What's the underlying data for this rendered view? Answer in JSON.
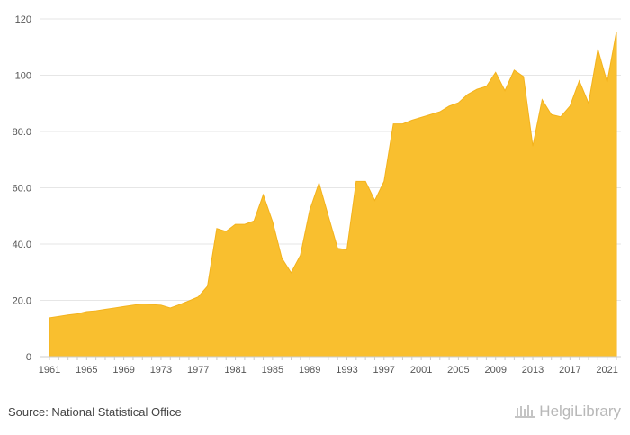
{
  "chart_data": {
    "type": "area",
    "title": "",
    "xlabel": "",
    "ylabel": "",
    "x": [
      1961,
      1962,
      1963,
      1964,
      1965,
      1966,
      1967,
      1968,
      1969,
      1970,
      1971,
      1972,
      1973,
      1974,
      1975,
      1976,
      1977,
      1978,
      1979,
      1980,
      1981,
      1982,
      1983,
      1984,
      1985,
      1986,
      1987,
      1988,
      1989,
      1990,
      1991,
      1992,
      1993,
      1994,
      1995,
      1996,
      1997,
      1998,
      1999,
      2000,
      2001,
      2002,
      2003,
      2004,
      2005,
      2006,
      2007,
      2008,
      2009,
      2010,
      2011,
      2012,
      2013,
      2014,
      2015,
      2016,
      2017,
      2018,
      2019,
      2020,
      2021,
      2022
    ],
    "values": [
      13.8,
      14.3,
      14.8,
      15.2,
      16.0,
      16.3,
      16.8,
      17.3,
      17.8,
      18.3,
      18.7,
      18.5,
      18.3,
      17.3,
      18.5,
      19.8,
      21.2,
      25.0,
      45.5,
      44.5,
      47.0,
      47.0,
      48.2,
      57.5,
      48.0,
      35.0,
      29.8,
      36.0,
      52.0,
      61.7,
      50.0,
      38.5,
      38.0,
      62.3,
      62.3,
      55.5,
      62.3,
      82.7,
      82.7,
      84.0,
      85.0,
      86.0,
      87.0,
      89.0,
      90.2,
      93.2,
      95.0,
      96.0,
      101.0,
      94.5,
      101.8,
      99.5,
      74.8,
      91.3,
      86.0,
      85.2,
      89.0,
      98.0,
      90.0,
      109.2,
      97.5,
      115.5
    ],
    "ylim": [
      0,
      120
    ],
    "yticks": [
      0,
      20.0,
      40.0,
      60.0,
      80.0,
      100,
      120
    ],
    "ytick_labels": [
      "0",
      "20.0",
      "40.0",
      "60.0",
      "80.0",
      "100",
      "120"
    ],
    "xtick_labels": [
      "1961",
      "1965",
      "1969",
      "1973",
      "1977",
      "1981",
      "1985",
      "1989",
      "1993",
      "1997",
      "2001",
      "2005",
      "2009",
      "2013",
      "2017",
      "2021"
    ],
    "grid": true,
    "colors": {
      "fill": "#f9bf2f",
      "stroke": "#f3b21c",
      "grid": "#e6e6e6",
      "axis": "#cccccc"
    }
  },
  "footer": {
    "source": "Source: National Statistical Office",
    "brand": "HelgiLibrary"
  }
}
